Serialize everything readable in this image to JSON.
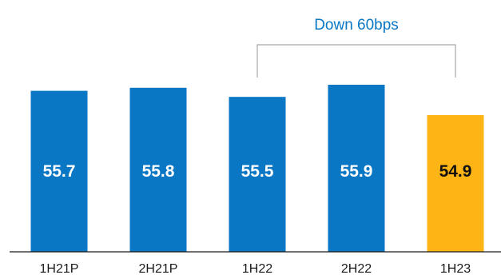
{
  "chart_data": {
    "type": "bar",
    "categories": [
      "1H21P",
      "2H21P",
      "1H22",
      "2H22",
      "1H23"
    ],
    "values": [
      55.7,
      55.8,
      55.5,
      55.9,
      54.9
    ],
    "value_labels": [
      "55.7",
      "55.8",
      "55.5",
      "55.9",
      "54.9"
    ],
    "colors": [
      "#0a77c4",
      "#0a77c4",
      "#0a77c4",
      "#0a77c4",
      "#fdb515"
    ],
    "label_colors": [
      "#ffffff",
      "#ffffff",
      "#ffffff",
      "#ffffff",
      "#111111"
    ],
    "annotation": {
      "text": "Down 60bps",
      "from_category": "1H22",
      "to_category": "1H23",
      "color": "#0a77c4"
    },
    "title": "",
    "xlabel": "",
    "ylabel": "",
    "grid": false,
    "legend": "none"
  }
}
